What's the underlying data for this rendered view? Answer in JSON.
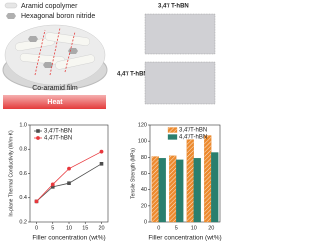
{
  "illustration": {
    "legend": [
      "Aramid copolymer",
      "Hexagonal boron nitride"
    ],
    "film_label": "Co-aramid film",
    "heat_label": "Heat"
  },
  "models": [
    "3,4'/ T-hBN",
    "4,4'/ T-hBN"
  ],
  "chart_data": [
    {
      "type": "line",
      "ylabel": "In-plane Thermal Conductivity (W/m·K)",
      "xlabel": "Filler concentration (wt%)",
      "x": [
        0,
        5,
        10,
        20
      ],
      "xlim": [
        -2,
        22
      ],
      "xticks": [
        0,
        5,
        10,
        15,
        20
      ],
      "ylim": [
        0.2,
        1.0
      ],
      "yticks": [
        0.2,
        0.4,
        0.6,
        {
          "value": 0.8,
          "label": "0.8"
        },
        {
          "value": 1.0,
          "label": "1.0"
        }
      ],
      "series": [
        {
          "name": "3,4'/T-hBN",
          "color": "#4d4d4d",
          "marker": "square",
          "values": [
            0.37,
            0.49,
            0.52,
            0.68
          ]
        },
        {
          "name": "4,4'/T-hBN",
          "color": "#e8383d",
          "marker": "circle",
          "values": [
            0.37,
            0.51,
            0.64,
            0.78
          ]
        }
      ]
    },
    {
      "type": "bar",
      "ylabel": "Tensile Strength (MPa)",
      "xlabel": "Filler concentration (wt%)",
      "categories": [
        "0",
        "5",
        "10",
        "20"
      ],
      "ylim": [
        0,
        120
      ],
      "yticks": [
        0,
        20,
        40,
        60,
        80,
        100,
        120
      ],
      "series": [
        {
          "name": "3,4'/T-hBN",
          "color": "#ec8a2e",
          "hatch": true,
          "values": [
            81,
            82,
            102,
            107
          ]
        },
        {
          "name": "4,4'/T-hBN",
          "color": "#2a7f6e",
          "hatch": false,
          "values": [
            79,
            77,
            79,
            86
          ]
        }
      ]
    }
  ]
}
